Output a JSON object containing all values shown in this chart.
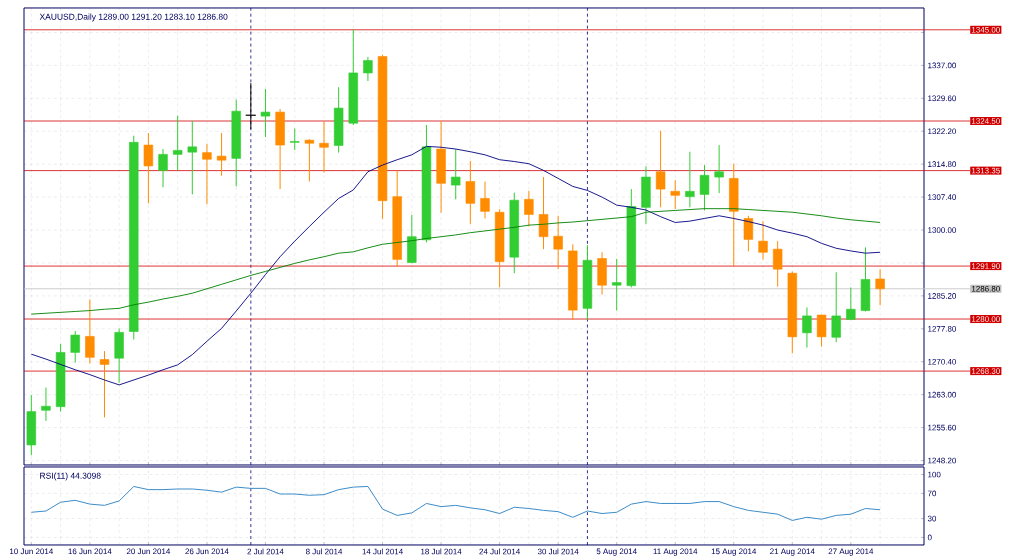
{
  "chart_data": [
    {
      "type": "candlestick",
      "title": "XAUUSD,Daily  1289.00 1291.20 1283.10 1286.80",
      "ohlc": [
        [
          1251.7,
          1262.9,
          1249.4,
          1259.2
        ],
        [
          1259.5,
          1264.6,
          1257.1,
          1260.4
        ],
        [
          1260.3,
          1274.4,
          1259.2,
          1272.5
        ],
        [
          1272.5,
          1277.3,
          1270.2,
          1276.4
        ],
        [
          1276.1,
          1284.4,
          1270.0,
          1271.4
        ],
        [
          1270.9,
          1272.8,
          1257.9,
          1269.8
        ],
        [
          1271.2,
          1277.9,
          1265.7,
          1277.0
        ],
        [
          1277.2,
          1321.2,
          1275.4,
          1319.7
        ],
        [
          1319.1,
          1321.8,
          1306.0,
          1314.4
        ],
        [
          1313.4,
          1318.2,
          1309.6,
          1317.0
        ],
        [
          1317.0,
          1325.7,
          1313.4,
          1317.9
        ],
        [
          1317.5,
          1324.5,
          1308.0,
          1318.7
        ],
        [
          1317.4,
          1319.4,
          1305.8,
          1315.9
        ],
        [
          1316.6,
          1321.8,
          1312.2,
          1315.7
        ],
        [
          1316.1,
          1329.3,
          1309.8,
          1326.7
        ],
        [
          1325.8,
          1333.0,
          1322.7,
          1325.8
        ],
        [
          1325.6,
          1331.7,
          1320.9,
          1326.5
        ],
        [
          1326.5,
          1327.2,
          1309.2,
          1319.1
        ],
        [
          1319.7,
          1322.8,
          1318.0,
          1319.9
        ],
        [
          1320.2,
          1320.4,
          1310.9,
          1319.5
        ],
        [
          1319.5,
          1324.4,
          1312.9,
          1318.6
        ],
        [
          1319.0,
          1332.1,
          1317.4,
          1327.4
        ],
        [
          1324.0,
          1345.0,
          1323.6,
          1335.3
        ],
        [
          1335.3,
          1338.9,
          1333.5,
          1338.1
        ],
        [
          1339.0,
          1339.4,
          1302.5,
          1306.6
        ],
        [
          1307.5,
          1313.4,
          1291.8,
          1293.4
        ],
        [
          1292.7,
          1303.4,
          1292.5,
          1298.5
        ],
        [
          1297.8,
          1323.6,
          1297.2,
          1318.7
        ],
        [
          1318.2,
          1324.4,
          1303.9,
          1310.5
        ],
        [
          1310.1,
          1318.2,
          1306.9,
          1311.9
        ],
        [
          1310.9,
          1315.5,
          1301.4,
          1306.0
        ],
        [
          1307.1,
          1310.9,
          1302.6,
          1304.2
        ],
        [
          1304.0,
          1304.7,
          1287.1,
          1292.9
        ],
        [
          1293.9,
          1308.4,
          1290.3,
          1306.7
        ],
        [
          1306.9,
          1308.8,
          1300.8,
          1303.5
        ],
        [
          1303.5,
          1311.9,
          1295.7,
          1298.5
        ],
        [
          1298.6,
          1303.2,
          1291.2,
          1295.7
        ],
        [
          1295.3,
          1296.8,
          1279.8,
          1282.0
        ],
        [
          1282.4,
          1296.6,
          1279.8,
          1293.2
        ],
        [
          1293.6,
          1295.0,
          1285.5,
          1287.6
        ],
        [
          1287.6,
          1293.5,
          1281.9,
          1288.2
        ],
        [
          1287.5,
          1309.2,
          1287.1,
          1305.3
        ],
        [
          1305.1,
          1314.3,
          1301.4,
          1311.9
        ],
        [
          1313.1,
          1322.3,
          1305.1,
          1309.2
        ],
        [
          1308.7,
          1311.2,
          1304.7,
          1307.8
        ],
        [
          1307.5,
          1317.6,
          1305.1,
          1308.7
        ],
        [
          1308.0,
          1314.6,
          1304.4,
          1312.3
        ],
        [
          1311.9,
          1319.1,
          1308.3,
          1313.1
        ],
        [
          1311.6,
          1314.9,
          1291.9,
          1304.2
        ],
        [
          1302.6,
          1303.2,
          1295.2,
          1297.9
        ],
        [
          1297.5,
          1302.0,
          1293.4,
          1295.0
        ],
        [
          1295.7,
          1297.5,
          1287.3,
          1291.2
        ],
        [
          1290.3,
          1290.7,
          1272.3,
          1276.0
        ],
        [
          1276.9,
          1282.6,
          1273.6,
          1280.7
        ],
        [
          1280.9,
          1280.9,
          1273.8,
          1276.0
        ],
        [
          1275.9,
          1290.5,
          1274.8,
          1280.7
        ],
        [
          1279.9,
          1287.1,
          1279.8,
          1282.2
        ],
        [
          1281.9,
          1296.1,
          1281.7,
          1288.9
        ],
        [
          1289.0,
          1291.2,
          1283.1,
          1286.8
        ]
      ],
      "colors": [
        "#32cd32",
        "#32cd32",
        "#32cd32",
        "#32cd32",
        "#ff8c00",
        "#ff8c00",
        "#32cd32",
        "#32cd32",
        "#ff8c00",
        "#32cd32",
        "#32cd32",
        "#32cd32",
        "#ff8c00",
        "#ff8c00",
        "#32cd32",
        "#000000",
        "#32cd32",
        "#ff8c00",
        "#32cd32",
        "#ff8c00",
        "#ff8c00",
        "#32cd32",
        "#32cd32",
        "#32cd32",
        "#ff8c00",
        "#ff8c00",
        "#32cd32",
        "#32cd32",
        "#ff8c00",
        "#32cd32",
        "#ff8c00",
        "#ff8c00",
        "#ff8c00",
        "#32cd32",
        "#ff8c00",
        "#ff8c00",
        "#ff8c00",
        "#ff8c00",
        "#32cd32",
        "#ff8c00",
        "#32cd32",
        "#32cd32",
        "#32cd32",
        "#ff8c00",
        "#ff8c00",
        "#32cd32",
        "#32cd32",
        "#32cd32",
        "#ff8c00",
        "#ff8c00",
        "#ff8c00",
        "#ff8c00",
        "#ff8c00",
        "#32cd32",
        "#ff8c00",
        "#32cd32",
        "#32cd32",
        "#32cd32",
        "#ff8c00"
      ],
      "series": [
        {
          "type": "line",
          "color": "#000080",
          "values": [
            1272.1,
            1271.0,
            1269.8,
            1268.6,
            1267.5,
            1266.3,
            1265.2,
            1266.3,
            1267.4,
            1268.6,
            1269.7,
            1272.0,
            1275.0,
            1277.9,
            1281.8,
            1285.8,
            1290.0,
            1294.0,
            1297.5,
            1300.8,
            1304.0,
            1307.1,
            1309.0,
            1313.1,
            1314.6,
            1315.8,
            1316.9,
            1318.8,
            1318.6,
            1318.2,
            1317.6,
            1316.9,
            1315.8,
            1315.4,
            1314.9,
            1313.4,
            1311.6,
            1309.8,
            1308.9,
            1307.4,
            1305.6,
            1305.1,
            1304.5,
            1303.0,
            1301.7,
            1302.0,
            1302.6,
            1303.2,
            1302.6,
            1301.9,
            1301.1,
            1300.0,
            1299.3,
            1298.5,
            1297.0,
            1295.9,
            1295.3,
            1294.8,
            1295.0
          ]
        },
        {
          "type": "line",
          "color": "#008000",
          "values": [
            1281.1,
            1281.3,
            1281.5,
            1281.7,
            1281.9,
            1282.2,
            1282.4,
            1283.2,
            1283.8,
            1284.5,
            1285.1,
            1285.8,
            1286.8,
            1287.8,
            1288.8,
            1289.8,
            1290.7,
            1291.6,
            1292.5,
            1293.3,
            1294.0,
            1294.8,
            1295.1,
            1296.0,
            1296.8,
            1297.2,
            1297.6,
            1298.1,
            1298.5,
            1298.9,
            1299.4,
            1299.8,
            1300.2,
            1300.6,
            1301.1,
            1301.3,
            1301.6,
            1301.8,
            1302.1,
            1302.4,
            1302.7,
            1303.0,
            1304.0,
            1304.2,
            1304.4,
            1304.6,
            1304.8,
            1304.8,
            1304.8,
            1304.6,
            1304.4,
            1304.2,
            1304.0,
            1303.6,
            1303.2,
            1302.7,
            1302.3,
            1302.0,
            1301.7
          ]
        }
      ],
      "ylim": [
        1247.2,
        1349.9
      ],
      "yticks": [
        {
          "value": 1248.2,
          "label": "1248.20"
        },
        {
          "value": 1255.6,
          "label": "1255.60"
        },
        {
          "value": 1263.0,
          "label": "1263.00"
        },
        {
          "value": 1270.4,
          "label": "1270.40"
        },
        {
          "value": 1277.8,
          "label": "1277.80"
        },
        {
          "value": 1285.2,
          "label": "1285.20"
        },
        {
          "value": 1292.6,
          "label": null
        },
        {
          "value": 1300.0,
          "label": "1300.00"
        },
        {
          "value": 1307.4,
          "label": "1307.40"
        },
        {
          "value": 1314.8,
          "label": "1314.80"
        },
        {
          "value": 1322.2,
          "label": "1322.20"
        },
        {
          "value": 1329.6,
          "label": "1329.60"
        },
        {
          "value": 1337.0,
          "label": "1337.00"
        },
        {
          "value": 1344.4,
          "label": null
        }
      ],
      "ref_lines": [
        {
          "axis": "y",
          "value": 1345.0,
          "label": "1345.00",
          "color": "#d00000"
        },
        {
          "axis": "y",
          "value": 1324.5,
          "label": "1324.50",
          "color": "#d00000"
        },
        {
          "axis": "y",
          "value": 1313.35,
          "label": "1313.35",
          "color": "#d00000"
        },
        {
          "axis": "y",
          "value": 1291.9,
          "label": "1291.90",
          "color": "#d00000"
        },
        {
          "axis": "y",
          "value": 1280.0,
          "label": "1280.00",
          "color": "#d00000"
        },
        {
          "axis": "y",
          "value": 1268.3,
          "label": "1268.30",
          "color": "#d00000"
        },
        {
          "axis": "y",
          "value": 1286.8,
          "label": "1286.80",
          "color": "#c0c0c0"
        }
      ],
      "grid": true,
      "tick_labels": "y"
    },
    {
      "type": "line",
      "title": "RSI(11) 44.3098",
      "categories": [
        "10 Jun 2014",
        null,
        null,
        null,
        "16 Jun 2014",
        null,
        null,
        null,
        "20 Jun 2014",
        null,
        null,
        null,
        "26 Jun 2014",
        null,
        null,
        null,
        "2 Jul 2014",
        null,
        null,
        null,
        "8 Jul 2014",
        null,
        null,
        null,
        "14 Jul 2014",
        null,
        null,
        null,
        "18 Jul 2014",
        null,
        null,
        null,
        "24 Jul 2014",
        null,
        null,
        null,
        "30 Jul 2014",
        null,
        null,
        null,
        "5 Aug 2014",
        null,
        null,
        null,
        "11 Aug 2014",
        null,
        null,
        null,
        "15 Aug 2014",
        null,
        null,
        null,
        "21 Aug 2014",
        null,
        null,
        null,
        "27 Aug 2014",
        null,
        null
      ],
      "color": "#3c8cc8",
      "values": [
        40,
        42,
        56,
        59,
        53,
        51,
        58,
        81,
        76,
        76,
        77,
        77,
        75,
        72,
        80,
        78,
        78,
        69,
        69,
        67,
        68,
        76,
        80,
        81,
        45,
        35,
        39,
        54,
        49,
        51,
        47,
        44,
        38,
        48,
        46,
        43,
        41,
        32,
        42,
        38,
        40,
        53,
        57,
        54,
        54,
        54,
        57,
        57,
        49,
        43,
        40,
        37,
        27,
        32,
        29,
        35,
        37,
        46,
        44
      ],
      "ylim": [
        -12,
        112
      ],
      "yticks": [
        0,
        30,
        70,
        100
      ],
      "grid": true
    }
  ]
}
